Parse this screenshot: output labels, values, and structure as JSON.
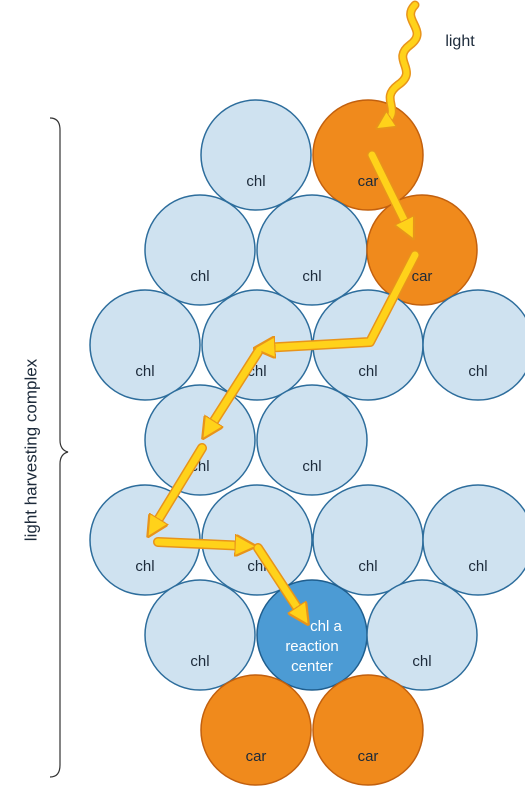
{
  "light_label": "light",
  "side_label": "light harvesting complex",
  "nodes": [
    {
      "lines": [
        "chl"
      ]
    },
    {
      "lines": [
        "car"
      ]
    },
    {
      "lines": [
        "chl"
      ]
    },
    {
      "lines": [
        "chl"
      ]
    },
    {
      "lines": [
        "car"
      ]
    },
    {
      "lines": [
        "chl"
      ]
    },
    {
      "lines": [
        "chl"
      ]
    },
    {
      "lines": [
        "chl"
      ]
    },
    {
      "lines": [
        "chl"
      ]
    },
    {
      "lines": [
        "chl"
      ]
    },
    {
      "lines": [
        "chl"
      ]
    },
    {
      "lines": [
        "chl"
      ]
    },
    {
      "lines": [
        "chl"
      ]
    },
    {
      "lines": [
        "chl"
      ]
    },
    {
      "lines": [
        "chl"
      ]
    },
    {
      "lines": [
        "chl"
      ]
    },
    {
      "lines": [
        "chl a",
        "reaction",
        "center"
      ]
    },
    {
      "lines": [
        "chl"
      ]
    },
    {
      "lines": [
        "car"
      ]
    },
    {
      "lines": [
        "car"
      ]
    }
  ]
}
